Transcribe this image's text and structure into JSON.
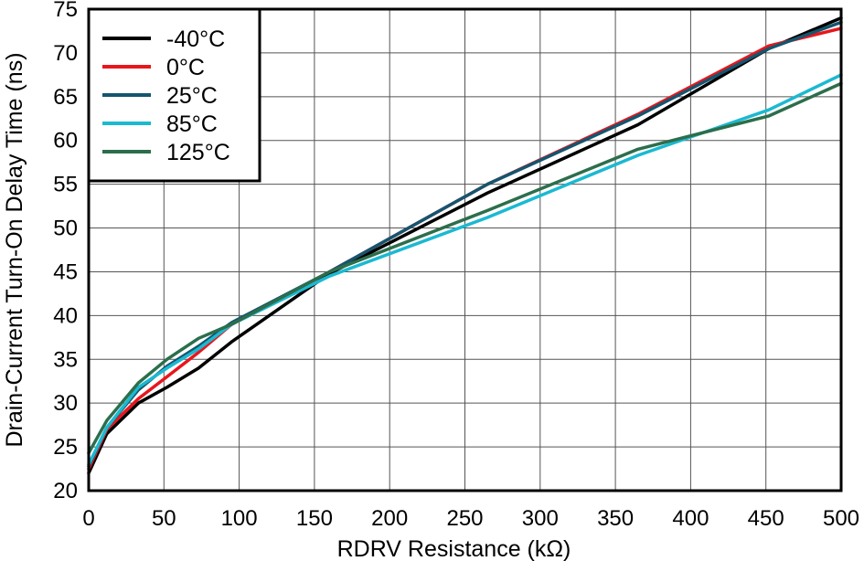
{
  "chart_data": {
    "type": "line",
    "title": "",
    "xlabel": "RDRV Resistance (kΩ)",
    "ylabel": "Drain-Current Turn-On Delay Time (ns)",
    "xlim": [
      0,
      500
    ],
    "ylim": [
      20,
      75
    ],
    "x_ticks": [
      "0",
      "50",
      "100",
      "150",
      "200",
      "250",
      "300",
      "350",
      "400",
      "450",
      "500"
    ],
    "y_ticks": [
      "20",
      "25",
      "30",
      "35",
      "40",
      "45",
      "50",
      "55",
      "60",
      "65",
      "70",
      "75"
    ],
    "grid": true,
    "legend_position": "top-left",
    "series": [
      {
        "name": "-40°C",
        "color": "#000000",
        "points": [
          [
            0,
            22
          ],
          [
            12,
            26.5
          ],
          [
            33,
            30
          ],
          [
            52,
            31.8
          ],
          [
            73,
            34
          ],
          [
            95,
            37
          ],
          [
            160,
            44.8
          ],
          [
            265,
            54
          ],
          [
            365,
            61.8
          ],
          [
            452,
            70.5
          ],
          [
            500,
            74
          ]
        ]
      },
      {
        "name": "0°C",
        "color": "#e8161d",
        "points": [
          [
            0,
            22.5
          ],
          [
            12,
            27
          ],
          [
            33,
            30.5
          ],
          [
            52,
            33
          ],
          [
            73,
            35.8
          ],
          [
            95,
            39
          ],
          [
            160,
            45
          ],
          [
            265,
            55
          ],
          [
            365,
            63
          ],
          [
            452,
            70.8
          ],
          [
            500,
            72.8
          ]
        ]
      },
      {
        "name": "25°C",
        "color": "#14556f",
        "points": [
          [
            0,
            22.8
          ],
          [
            12,
            27.2
          ],
          [
            33,
            31.5
          ],
          [
            52,
            34.2
          ],
          [
            73,
            36.5
          ],
          [
            95,
            39.2
          ],
          [
            160,
            45
          ],
          [
            265,
            55
          ],
          [
            365,
            62.8
          ],
          [
            452,
            70.5
          ],
          [
            500,
            73.5
          ]
        ]
      },
      {
        "name": "85°C",
        "color": "#1bb9d1",
        "points": [
          [
            0,
            23
          ],
          [
            12,
            27.2
          ],
          [
            33,
            31.8
          ],
          [
            52,
            34
          ],
          [
            73,
            36.2
          ],
          [
            95,
            39
          ],
          [
            160,
            44.5
          ],
          [
            265,
            51.2
          ],
          [
            365,
            58.3
          ],
          [
            452,
            63.5
          ],
          [
            500,
            67.5
          ]
        ]
      },
      {
        "name": "125°C",
        "color": "#2c6e4c",
        "points": [
          [
            0,
            24.3
          ],
          [
            12,
            28
          ],
          [
            33,
            32.3
          ],
          [
            52,
            35
          ],
          [
            73,
            37.4
          ],
          [
            95,
            39
          ],
          [
            160,
            45
          ],
          [
            265,
            52
          ],
          [
            365,
            59
          ],
          [
            452,
            62.8
          ],
          [
            500,
            66.5
          ]
        ]
      }
    ]
  }
}
